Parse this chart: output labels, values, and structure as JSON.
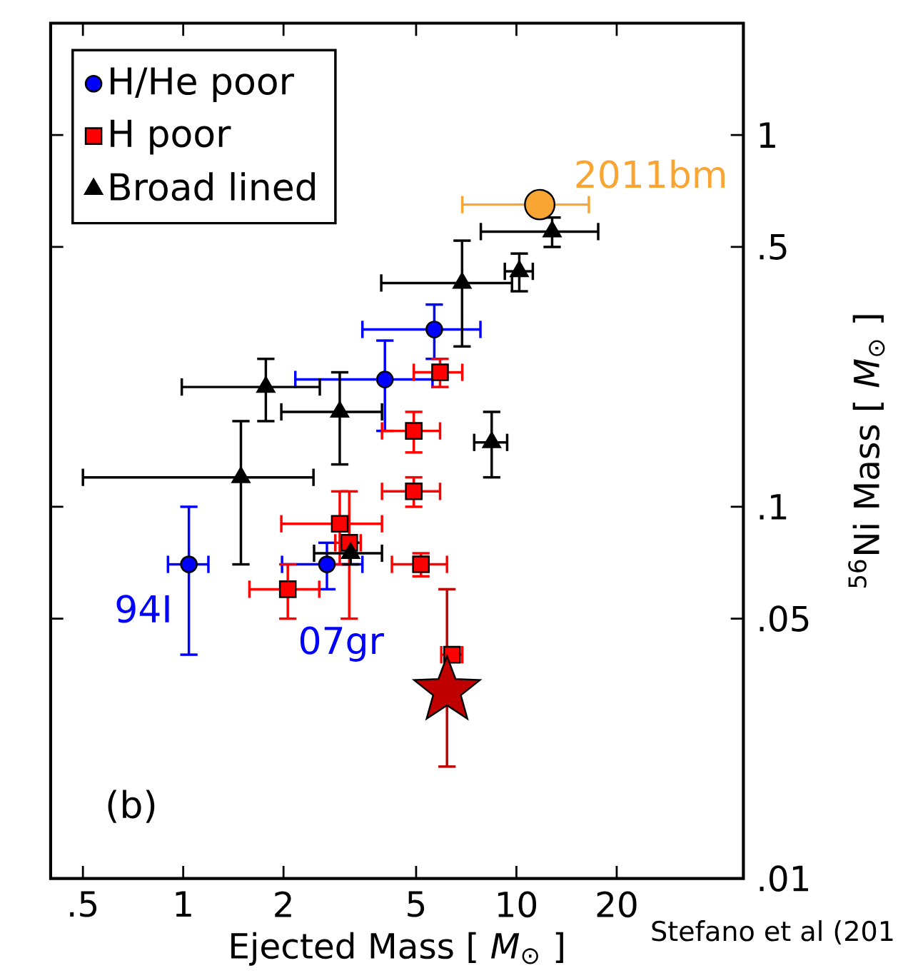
{
  "chart_data": {
    "type": "scatter",
    "xlabel": "Ejected Mass [ *M*$_{⊙}$ ]",
    "ylabel": "$^{56}$Ni Mass [ *M*$_{⊙}$ ]",
    "log": "xy",
    "grid": false,
    "legend": "top left",
    "xlim": [
      0.4,
      48
    ],
    "ylim": [
      0.01,
      2
    ],
    "xticks": [
      {
        "value": 0.5,
        "label": ".5"
      },
      1,
      2,
      5,
      10,
      20
    ],
    "yticks": [
      {
        "value": 0.01,
        "label": ".01"
      },
      {
        "value": 0.05,
        "label": ".05"
      },
      {
        "value": 0.1,
        "label": ".1"
      },
      {
        "value": 0.5,
        "label": ".5"
      },
      1
    ],
    "series": [
      {
        "name": "H/He poor",
        "color": "#0000ff",
        "marker": "circle",
        "x": [
          1.04,
          2.7,
          4.03,
          5.67
        ],
        "values": [
          0.07,
          0.07,
          0.22,
          0.3
        ],
        "errors": [
          [
            0.04,
            0.1
          ],
          [
            0.06,
            0.08
          ],
          [
            0.16,
            0.28
          ],
          [
            0.25,
            0.35
          ]
        ],
        "xerrors": [
          [
            0.9,
            1.19
          ],
          [
            1.98,
            3.45
          ],
          [
            2.17,
            5.6
          ],
          [
            3.45,
            7.8
          ]
        ]
      },
      {
        "name": "H poor",
        "color": "#ff0000",
        "marker": "square",
        "x": [
          2.06,
          2.95,
          3.15,
          4.92,
          4.92,
          5.9,
          5.17,
          6.41
        ],
        "values": [
          0.06,
          0.09,
          0.08,
          0.16,
          0.11,
          0.23,
          0.07,
          0.04
        ],
        "errors": [
          [
            0.05,
            0.07
          ],
          [
            0.07,
            0.11
          ],
          [
            0.05,
            0.11
          ],
          [
            0.14,
            0.18
          ],
          [
            0.1,
            0.12
          ],
          [
            0.21,
            0.25
          ],
          [
            0.065,
            0.075
          ],
          null
        ],
        "xerrors": [
          [
            1.58,
            2.56
          ],
          [
            1.97,
            3.95
          ],
          [
            2.86,
            3.41
          ],
          [
            3.95,
            5.9
          ],
          [
            3.95,
            5.9
          ],
          [
            4.92,
            6.88
          ],
          [
            4.23,
            6.19
          ],
          [
            5.95,
            6.88
          ]
        ]
      },
      {
        "name": "Broad lined",
        "color": "#000000",
        "marker": "triangle",
        "x": [
          1.49,
          1.77,
          2.95,
          3.18,
          6.87,
          8.43,
          10.2,
          12.8
        ],
        "values": [
          0.12,
          0.21,
          0.18,
          0.075,
          0.4,
          0.149,
          0.43,
          0.55
        ],
        "errors": [
          [
            0.07,
            0.17
          ],
          [
            0.17,
            0.25
          ],
          [
            0.13,
            0.23
          ],
          [
            0.07,
            0.08
          ],
          [
            0.27,
            0.52
          ],
          [
            0.12,
            0.18
          ],
          [
            0.38,
            0.48
          ],
          [
            0.5,
            0.6
          ]
        ],
        "xerrors": [
          [
            0.5,
            2.46
          ],
          [
            0.99,
            2.57
          ],
          [
            1.97,
            3.95
          ],
          [
            2.47,
            3.95
          ],
          [
            3.93,
            9.7
          ],
          [
            7.47,
            9.38
          ],
          [
            9.23,
            11.2
          ],
          [
            7.82,
            17.6
          ]
        ]
      },
      {
        "color": "#f8a534",
        "marker": "circle",
        "x": [
          11.75
        ],
        "values": [
          0.65
        ],
        "xerrors": [
          [
            6.88,
            16.5
          ]
        ]
      },
      {
        "color": "#c00000",
        "marker": "star",
        "x": [
          6.19
        ],
        "values": [
          0.032
        ],
        "errors": [
          [
            0.02,
            0.06
          ]
        ]
      }
    ],
    "annotations": [
      {
        "text": "2011bm",
        "x": 11.75,
        "y": 0.65
      },
      {
        "text": "94I",
        "x": 1.04,
        "y": 0.07
      },
      {
        "text": "07gr",
        "x": 2.7,
        "y": 0.07
      },
      "(b)",
      "Stefano et al (201"
    ]
  }
}
